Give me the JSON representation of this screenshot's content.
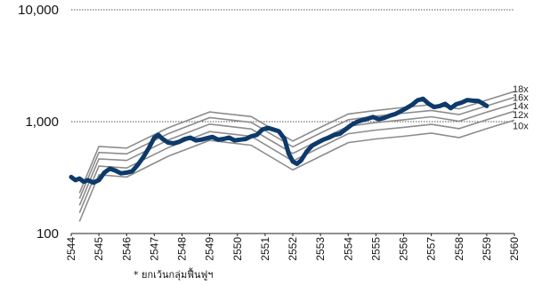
{
  "chart_data": {
    "type": "line",
    "title": "",
    "xlabel": "",
    "ylabel": "",
    "y_scale": "log",
    "ylim": [
      100,
      10000
    ],
    "xlim": [
      2544,
      2560
    ],
    "y_ticks": [
      {
        "value": 100,
        "label": "100"
      },
      {
        "value": 1000,
        "label": "1,000"
      },
      {
        "value": 10000,
        "label": "10,000"
      }
    ],
    "x_tick_labels": [
      "2544",
      "2545",
      "2546",
      "2547",
      "2548",
      "2549",
      "2550",
      "2551",
      "2552",
      "2553",
      "2554",
      "2555",
      "2556",
      "2557",
      "2558",
      "2559",
      "2560"
    ],
    "grid": "dotted horizontal at 1,000 and 10,000",
    "footnote": "* ยกเว้นกลุ่มฟื้นฟูฯ",
    "colors": {
      "index": "#0d3a6b",
      "bands": "#8c8c8c",
      "grid": "#555555"
    },
    "bands": [
      {
        "name": "18x",
        "x": [
          2544.3,
          2545,
          2546,
          2547.5,
          2549,
          2550.5,
          2552,
          2553,
          2554,
          2555,
          2556,
          2557,
          2558,
          2559,
          2560
        ],
        "values": [
          230,
          600,
          580,
          880,
          1220,
          1110,
          670,
          890,
          1170,
          1260,
          1340,
          1420,
          1300,
          1560,
          1860
        ]
      },
      {
        "name": "16x",
        "x": [
          2544.3,
          2545,
          2546,
          2547.5,
          2549,
          2550.5,
          2552,
          2553,
          2554,
          2555,
          2556,
          2557,
          2558,
          2559,
          2560
        ],
        "values": [
          205,
          530,
          515,
          780,
          1085,
          985,
          595,
          790,
          1040,
          1120,
          1190,
          1260,
          1155,
          1385,
          1650
        ]
      },
      {
        "name": "14x",
        "x": [
          2544.3,
          2545,
          2546,
          2547.5,
          2549,
          2550.5,
          2552,
          2553,
          2554,
          2555,
          2556,
          2557,
          2558,
          2559,
          2560
        ],
        "values": [
          178,
          465,
          450,
          685,
          950,
          860,
          520,
          690,
          910,
          980,
          1040,
          1105,
          1010,
          1215,
          1445
        ]
      },
      {
        "name": "12x",
        "x": [
          2544.3,
          2545,
          2546,
          2547.5,
          2549,
          2550.5,
          2552,
          2553,
          2554,
          2555,
          2556,
          2557,
          2558,
          2559,
          2560
        ],
        "values": [
          153,
          400,
          385,
          585,
          815,
          740,
          445,
          590,
          780,
          840,
          890,
          945,
          865,
          1040,
          1240
        ]
      },
      {
        "name": "10x",
        "x": [
          2544.3,
          2545,
          2546,
          2547.5,
          2549,
          2550.5,
          2552,
          2553,
          2554,
          2555,
          2556,
          2557,
          2558,
          2559,
          2560
        ],
        "values": [
          128,
          335,
          320,
          490,
          680,
          615,
          370,
          490,
          650,
          700,
          740,
          790,
          720,
          865,
          1030
        ]
      }
    ],
    "series": [
      {
        "x": [
          2544.0,
          2544.15,
          2544.3,
          2544.45,
          2544.6,
          2544.8,
          2545.0,
          2545.2,
          2545.4,
          2545.6,
          2545.8,
          2546.0,
          2546.2,
          2546.4,
          2546.6,
          2546.8,
          2547.0,
          2547.15,
          2547.3,
          2547.5,
          2547.7,
          2547.9,
          2548.1,
          2548.3,
          2548.5,
          2548.7,
          2548.9,
          2549.1,
          2549.3,
          2549.5,
          2549.7,
          2549.9,
          2550.1,
          2550.3,
          2550.5,
          2550.7,
          2550.9,
          2551.1,
          2551.3,
          2551.5,
          2551.7,
          2551.85,
          2552.0,
          2552.15,
          2552.3,
          2552.5,
          2552.7,
          2552.9,
          2553.1,
          2553.3,
          2553.5,
          2553.7,
          2553.9,
          2554.1,
          2554.3,
          2554.5,
          2554.7,
          2554.9,
          2555.1,
          2555.3,
          2555.5,
          2555.7,
          2555.9,
          2556.1,
          2556.3,
          2556.5,
          2556.7,
          2556.9,
          2557.1,
          2557.3,
          2557.5,
          2557.7,
          2557.9,
          2558.1,
          2558.3,
          2558.5,
          2558.7,
          2558.9,
          2559.0
        ],
        "values": [
          320,
          300,
          310,
          290,
          300,
          285,
          300,
          350,
          380,
          365,
          345,
          350,
          360,
          410,
          480,
          580,
          720,
          760,
          700,
          650,
          640,
          660,
          700,
          720,
          680,
          690,
          710,
          730,
          690,
          700,
          720,
          680,
          690,
          700,
          740,
          760,
          850,
          880,
          850,
          820,
          700,
          520,
          440,
          420,
          450,
          540,
          610,
          650,
          690,
          720,
          760,
          780,
          850,
          930,
          990,
          1030,
          1060,
          1100,
          1050,
          1080,
          1130,
          1170,
          1240,
          1320,
          1410,
          1550,
          1600,
          1450,
          1350,
          1380,
          1440,
          1320,
          1430,
          1480,
          1560,
          1540,
          1530,
          1430,
          1380
        ]
      }
    ]
  }
}
